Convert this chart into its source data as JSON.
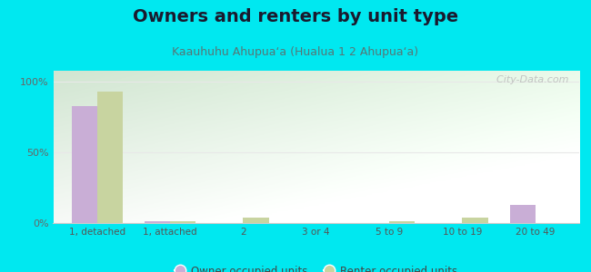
{
  "title": "Owners and renters by unit type",
  "subtitle": "Kaauhuhu Ahupuaʻa (Hualua 1 2 Ahupuaʻa)",
  "categories": [
    "1, detached",
    "1, attached",
    "2",
    "3 or 4",
    "5 to 9",
    "10 to 19",
    "20 to 49"
  ],
  "owner_values": [
    83,
    1,
    0,
    0,
    0,
    0,
    13
  ],
  "renter_values": [
    93,
    1,
    4,
    0,
    1,
    4,
    0
  ],
  "owner_color": "#c9aed6",
  "renter_color": "#c8d4a0",
  "background_color": "#00e8f0",
  "plot_bg_top_left": "#d8edd8",
  "plot_bg_bottom_right": "#f5faf5",
  "ylabel_ticks": [
    "0%",
    "50%",
    "100%"
  ],
  "yticks": [
    0,
    50,
    100
  ],
  "ylim": [
    0,
    108
  ],
  "bar_width": 0.35,
  "legend_owner": "Owner occupied units",
  "legend_renter": "Renter occupied units",
  "title_fontsize": 14,
  "subtitle_fontsize": 9,
  "watermark": "  City-Data.com"
}
